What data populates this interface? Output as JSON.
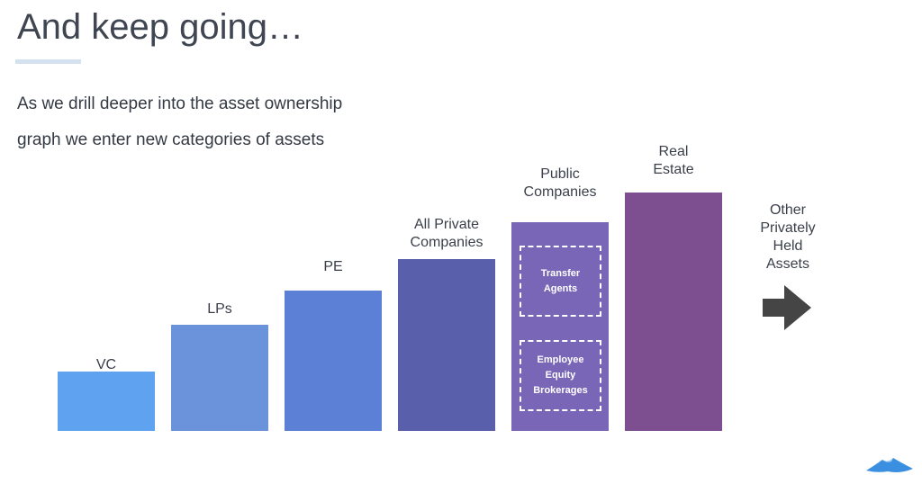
{
  "slide": {
    "title": "And keep going…",
    "subtitle_line1": "As we drill deeper into the asset ownership",
    "subtitle_line2": "graph we enter new categories of assets"
  },
  "bars": [
    {
      "label": "VC",
      "color": "#5fa2f0"
    },
    {
      "label": "LPs",
      "color": "#6a93dc"
    },
    {
      "label": "PE",
      "color": "#5b80d6"
    },
    {
      "label_line1": "All Private",
      "label_line2": "Companies",
      "color": "#5a5fac"
    },
    {
      "label_line1": "Public",
      "label_line2": "Companies",
      "color": "#7a66b7",
      "sub_boxes": [
        {
          "line1": "Transfer",
          "line2": "Agents"
        },
        {
          "line1": "Employee",
          "line2": "Equity",
          "line3": "Brokerages"
        }
      ]
    },
    {
      "label_line1": "Real",
      "label_line2": "Estate",
      "color": "#7e4f90"
    }
  ],
  "other": {
    "line1": "Other",
    "line2": "Privately",
    "line3": "Held",
    "line4": "Assets",
    "arrow_icon": "right-arrow-icon",
    "arrow_color": "#454545"
  },
  "logo": {
    "icon": "mountain-logo-icon",
    "color": "#3b8fe0"
  }
}
